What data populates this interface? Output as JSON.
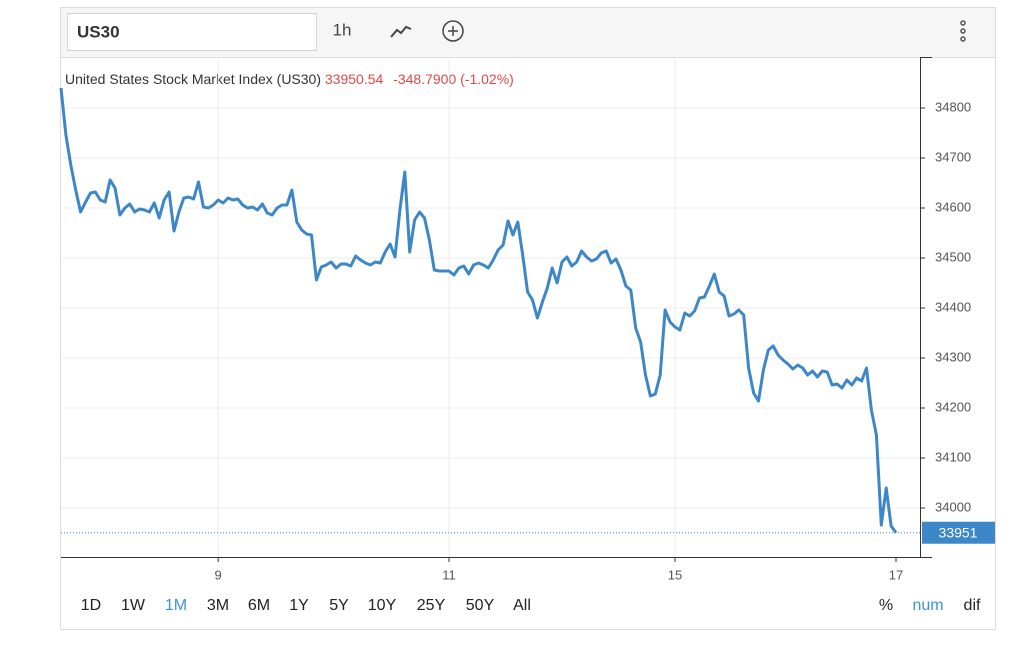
{
  "toolbar": {
    "symbol": "US30",
    "interval": "1h"
  },
  "chart_data": {
    "type": "line",
    "title": "United States Stock Market Index (US30)",
    "last_price": "33950.54",
    "change": "-348.7900 (-1.02%)",
    "price_tag": "33951",
    "categories": [
      null,
      null,
      null,
      null,
      null,
      null,
      null,
      null,
      null,
      null,
      null,
      null,
      null,
      null,
      null,
      null,
      null,
      null,
      null,
      null,
      null,
      null,
      null,
      null,
      null,
      null,
      null,
      null,
      null,
      null,
      null,
      null,
      "9",
      null,
      null,
      null,
      null,
      null,
      null,
      null,
      null,
      null,
      null,
      null,
      null,
      null,
      null,
      null,
      null,
      null,
      null,
      null,
      null,
      null,
      null,
      null,
      null,
      null,
      null,
      null,
      null,
      null,
      null,
      null,
      null,
      null,
      null,
      null,
      null,
      null,
      null,
      null,
      null,
      null,
      null,
      null,
      null,
      null,
      null,
      "11",
      null,
      null,
      null,
      null,
      null,
      null,
      null,
      null,
      null,
      null,
      null,
      null,
      null,
      null,
      null,
      null,
      null,
      null,
      null,
      null,
      null,
      null,
      null,
      null,
      null,
      null,
      null,
      null,
      null,
      null,
      null,
      null,
      null,
      null,
      null,
      null,
      null,
      null,
      null,
      null,
      null,
      null,
      null,
      null,
      null,
      "15",
      null,
      null,
      null,
      null,
      null,
      null,
      null,
      null,
      null,
      null,
      null,
      null,
      null,
      null,
      null,
      null,
      null,
      null,
      null,
      null,
      null,
      null,
      null,
      null,
      null,
      null,
      null,
      null,
      null,
      null,
      null,
      null,
      null,
      null,
      null,
      null,
      null,
      null,
      null,
      null,
      null,
      null,
      null,
      null,
      "17"
    ],
    "series": [
      {
        "name": "US30",
        "color": "#3d87c8",
        "values": [
          34840,
          34746,
          34686,
          34636,
          34592,
          34612,
          34630,
          34632,
          34616,
          34612,
          34656,
          34640,
          34586,
          34600,
          34608,
          34592,
          34598,
          34596,
          34592,
          34610,
          34580,
          34616,
          34632,
          34554,
          34592,
          34620,
          34622,
          34618,
          34652,
          34602,
          34600,
          34606,
          34616,
          34610,
          34620,
          34616,
          34618,
          34606,
          34600,
          34602,
          34596,
          34608,
          34590,
          34586,
          34600,
          34606,
          34606,
          34636,
          34572,
          34556,
          34548,
          34546,
          34456,
          34482,
          34486,
          34492,
          34480,
          34488,
          34488,
          34484,
          34504,
          34496,
          34490,
          34486,
          34492,
          34490,
          34512,
          34528,
          34502,
          34596,
          34672,
          34512,
          34576,
          34592,
          34580,
          34536,
          34476,
          34474,
          34474,
          34474,
          34466,
          34480,
          34484,
          34468,
          34486,
          34490,
          34486,
          34480,
          34496,
          34516,
          34526,
          34574,
          34546,
          34572,
          34506,
          34432,
          34416,
          34380,
          34412,
          34440,
          34480,
          34450,
          34492,
          34502,
          34484,
          34492,
          34514,
          34502,
          34494,
          34498,
          34510,
          34514,
          34490,
          34498,
          34476,
          34444,
          34436,
          34360,
          34332,
          34266,
          34224,
          34228,
          34266,
          34396,
          34372,
          34362,
          34356,
          34390,
          34384,
          34394,
          34420,
          34422,
          34444,
          34468,
          34432,
          34424,
          34384,
          34388,
          34396,
          34386,
          34280,
          34230,
          34214,
          34276,
          34316,
          34324,
          34306,
          34296,
          34288,
          34278,
          34286,
          34280,
          34266,
          34274,
          34262,
          34274,
          34272,
          34246,
          34248,
          34240,
          34256,
          34246,
          34260,
          34254,
          34280,
          34196,
          34146,
          33966,
          34040,
          33964,
          33950.54
        ]
      }
    ],
    "ylim": [
      33902,
      34902
    ],
    "yticks": [
      34000,
      34100,
      34200,
      34300,
      34400,
      34500,
      34600,
      34700,
      34800
    ],
    "grid": true
  },
  "ranges": [
    "1D",
    "1W",
    "1M",
    "3M",
    "6M",
    "1Y",
    "5Y",
    "10Y",
    "25Y",
    "50Y",
    "All"
  ],
  "active_range": "1M",
  "modes": [
    "%",
    "num",
    "dif"
  ],
  "active_mode": "num"
}
